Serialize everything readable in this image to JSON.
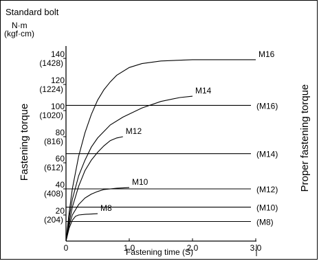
{
  "chart_data": {
    "type": "line",
    "title": "Standard bolt",
    "y_unit_primary": "N·m",
    "y_unit_secondary": "(kgf·cm)",
    "ylabel": "Fastening torque",
    "xlabel": "Fastening time (S)",
    "right_label": "Proper fastening torque",
    "xlim": [
      0,
      3.0
    ],
    "ylim": [
      0,
      150
    ],
    "x_ticks": [
      {
        "value": 0,
        "label": "0"
      },
      {
        "value": 1.0,
        "label": "1.0"
      },
      {
        "value": 2.0,
        "label": "2.0"
      },
      {
        "value": 3.0,
        "label": "3.0"
      }
    ],
    "y_ticks": [
      {
        "value": 20,
        "label": "20",
        "label2": "(204)"
      },
      {
        "value": 40,
        "label": "40",
        "label2": "(408)"
      },
      {
        "value": 60,
        "label": "60",
        "label2": "(612)"
      },
      {
        "value": 80,
        "label": "80",
        "label2": "(816)"
      },
      {
        "value": 100,
        "label": "100",
        "label2": "(1020)"
      },
      {
        "value": 120,
        "label": "120",
        "label2": "(1224)"
      },
      {
        "value": 140,
        "label": "140",
        "label2": "(1428)"
      }
    ],
    "series": [
      {
        "name": "M16",
        "points": [
          [
            0,
            0
          ],
          [
            0.05,
            22
          ],
          [
            0.1,
            40
          ],
          [
            0.2,
            65
          ],
          [
            0.3,
            83
          ],
          [
            0.4,
            97
          ],
          [
            0.5,
            108
          ],
          [
            0.6,
            116
          ],
          [
            0.7,
            122
          ],
          [
            0.8,
            127
          ],
          [
            1.0,
            133
          ],
          [
            1.2,
            136
          ],
          [
            1.5,
            138
          ],
          [
            2.0,
            139
          ],
          [
            2.5,
            139
          ],
          [
            3.0,
            139
          ]
        ]
      },
      {
        "name": "M14",
        "points": [
          [
            0,
            0
          ],
          [
            0.05,
            18
          ],
          [
            0.1,
            32
          ],
          [
            0.2,
            50
          ],
          [
            0.3,
            62
          ],
          [
            0.4,
            72
          ],
          [
            0.5,
            79
          ],
          [
            0.7,
            89
          ],
          [
            0.9,
            95
          ],
          [
            1.2,
            102
          ],
          [
            1.5,
            107
          ],
          [
            1.8,
            110
          ],
          [
            2.0,
            111
          ]
        ]
      },
      {
        "name": "M12",
        "points": [
          [
            0,
            0
          ],
          [
            0.05,
            14
          ],
          [
            0.1,
            26
          ],
          [
            0.2,
            42
          ],
          [
            0.3,
            54
          ],
          [
            0.4,
            62
          ],
          [
            0.5,
            68
          ],
          [
            0.6,
            73
          ],
          [
            0.7,
            77
          ],
          [
            0.8,
            79
          ],
          [
            0.9,
            80
          ]
        ]
      },
      {
        "name": "M10",
        "points": [
          [
            0,
            0
          ],
          [
            0.05,
            12
          ],
          [
            0.1,
            20
          ],
          [
            0.2,
            28
          ],
          [
            0.3,
            33
          ],
          [
            0.4,
            36
          ],
          [
            0.5,
            38
          ],
          [
            0.6,
            39.5
          ],
          [
            0.8,
            40.5
          ],
          [
            1.0,
            41
          ]
        ]
      },
      {
        "name": "M8",
        "points": [
          [
            0,
            0
          ],
          [
            0.05,
            10
          ],
          [
            0.1,
            16
          ],
          [
            0.15,
            19
          ],
          [
            0.2,
            20
          ],
          [
            0.3,
            20.5
          ],
          [
            0.5,
            21
          ]
        ]
      }
    ],
    "proper_torque_lines": [
      {
        "label": "(M16)",
        "value": 104
      },
      {
        "label": "(M14)",
        "value": 67
      },
      {
        "label": "(M12)",
        "value": 40
      },
      {
        "label": "(M10)",
        "value": 26
      },
      {
        "label": "(M8)",
        "value": 15
      }
    ]
  }
}
